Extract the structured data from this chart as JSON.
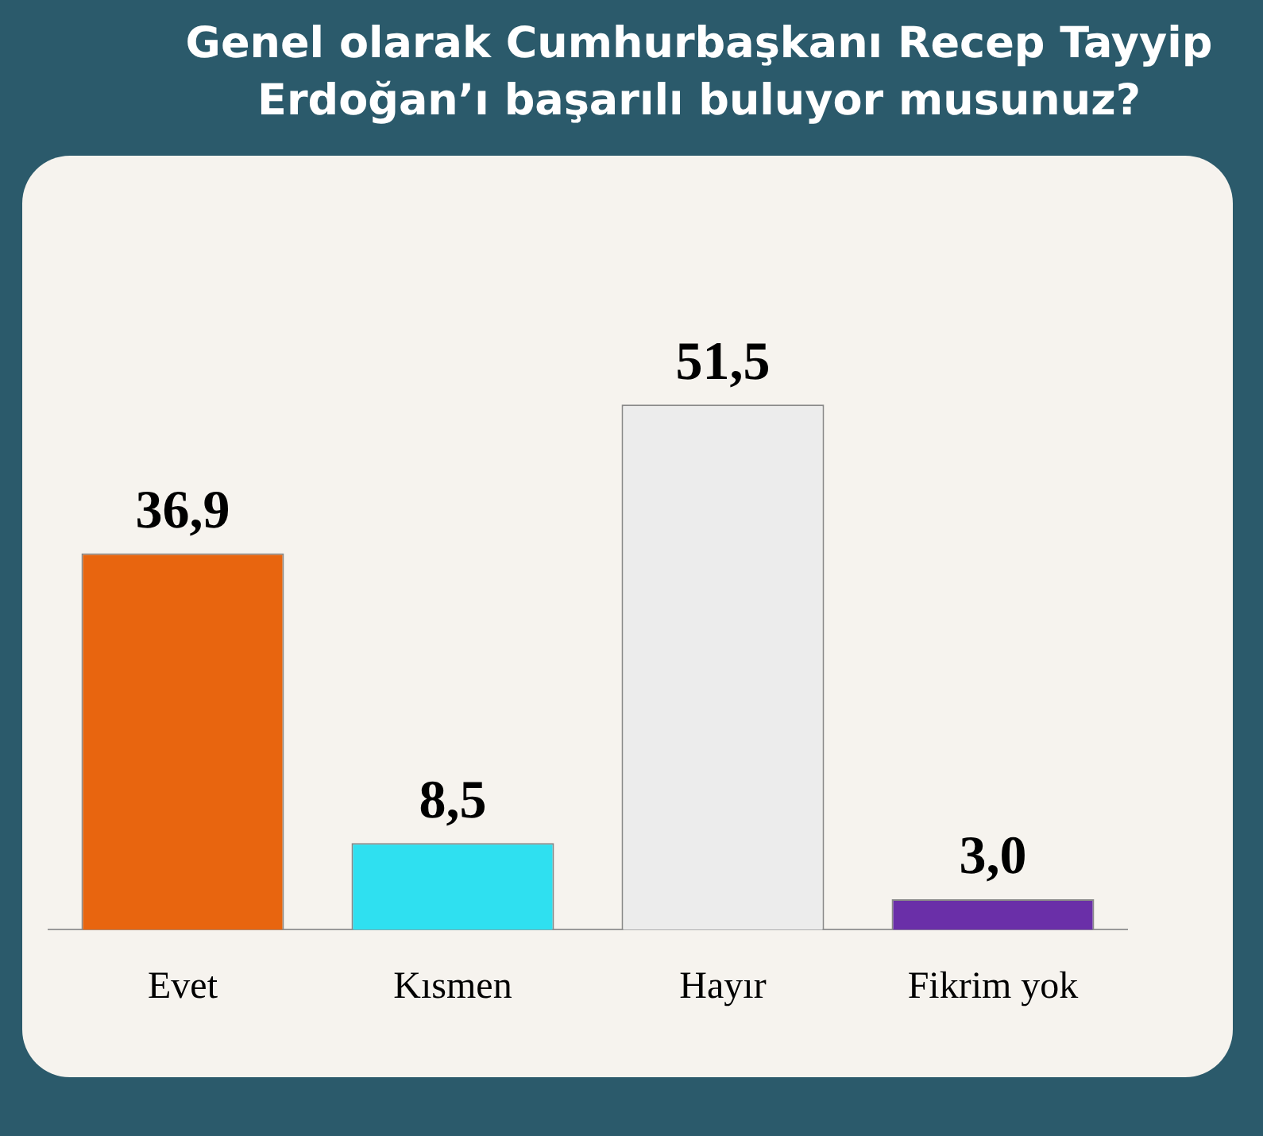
{
  "chart_data": {
    "type": "bar",
    "title": "Genel olarak Cumhurbaşkanı Recep Tayyip Erdoğan’ı başarılı buluyor musunuz?",
    "categories": [
      "Evet",
      "Kısmen",
      "Hayır",
      "Fikrim yok"
    ],
    "values": [
      36.9,
      8.5,
      51.5,
      3.0
    ],
    "colors": [
      "#e8650f",
      "#2fe0f0",
      "#ececec",
      "#6a2fa8"
    ],
    "value_labels": [
      "36,9",
      "8,5",
      "51,5",
      "3,0"
    ],
    "grid": false,
    "legend": false
  }
}
